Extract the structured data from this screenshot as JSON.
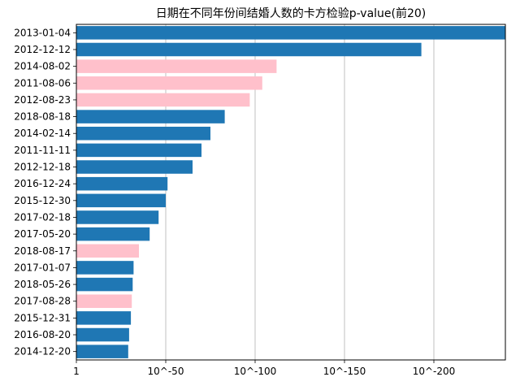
{
  "chart_data": {
    "type": "bar",
    "orientation": "horizontal",
    "title": "日期在不同年份间结婚人数的卡方检验p-value(前20)",
    "xlabel": "",
    "ylabel": "",
    "x_scale": "neg-log10",
    "xlim": [
      0,
      240
    ],
    "xticks": [
      {
        "value": 0,
        "label": "1"
      },
      {
        "value": 50,
        "label": "10^-50"
      },
      {
        "value": 100,
        "label": "10^-100"
      },
      {
        "value": 150,
        "label": "10^-150"
      },
      {
        "value": 200,
        "label": "10^-200"
      }
    ],
    "grid": "x",
    "colors": {
      "default": "#1f77b4",
      "highlight": "#ffc0cb"
    },
    "categories": [
      "2013-01-04",
      "2012-12-12",
      "2014-08-02",
      "2011-08-06",
      "2012-08-23",
      "2018-08-18",
      "2014-02-14",
      "2011-11-11",
      "2012-12-18",
      "2016-12-24",
      "2015-12-30",
      "2017-02-18",
      "2017-05-20",
      "2018-08-17",
      "2017-01-07",
      "2018-05-26",
      "2017-08-28",
      "2015-12-31",
      "2016-08-20",
      "2014-12-20"
    ],
    "values": [
      240,
      193,
      112,
      104,
      97,
      83,
      75,
      70,
      65,
      51,
      50,
      46,
      41,
      35,
      32,
      31.5,
      31,
      30.5,
      29.5,
      29
    ],
    "highlight": [
      false,
      false,
      true,
      true,
      true,
      false,
      false,
      false,
      false,
      false,
      false,
      false,
      false,
      true,
      false,
      false,
      true,
      false,
      false,
      false
    ]
  }
}
